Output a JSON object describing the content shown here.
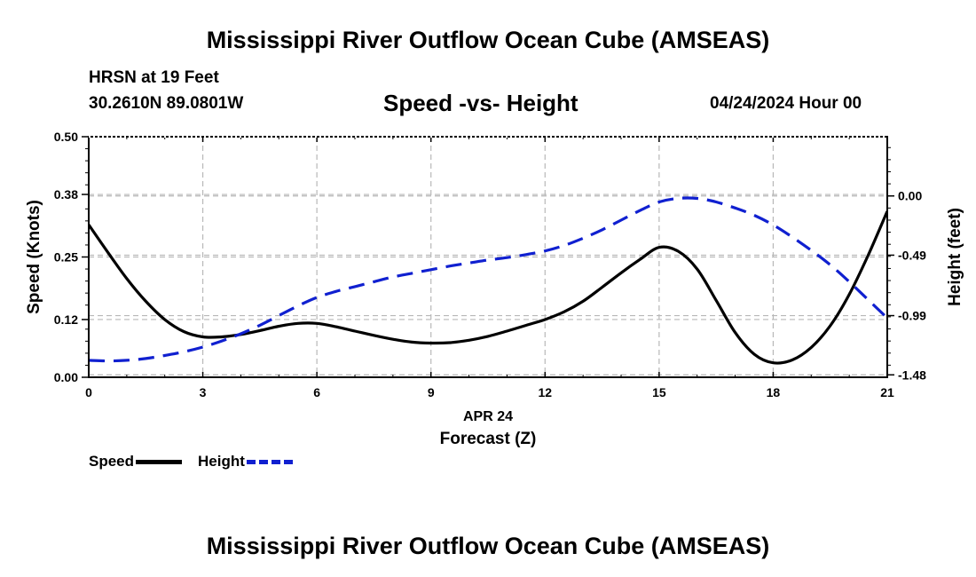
{
  "header": {
    "main_title": "Mississippi River Outflow Ocean Cube (AMSEAS)",
    "station": "HRSN at 19 Feet",
    "coords": "30.2610N  89.0801W",
    "subtitle": "Speed -vs- Height",
    "datetime": "04/24/2024 Hour 00"
  },
  "footer": {
    "title": "Mississippi River Outflow Ocean Cube (AMSEAS)"
  },
  "chart_data": {
    "type": "line",
    "title": "Speed -vs- Height",
    "xlabel": "Forecast (Z)",
    "xlabel_date": "APR 24",
    "x_ticks": [
      "0",
      "3",
      "6",
      "9",
      "12",
      "15",
      "18",
      "21"
    ],
    "xlim": [
      0,
      21
    ],
    "y_left": {
      "label": "Speed (Knots)",
      "ticks": [
        "0.00",
        "0.12",
        "0.25",
        "0.38",
        "0.50"
      ],
      "lim": [
        0,
        0.5
      ]
    },
    "y_right": {
      "label": "Height (feet)",
      "ticks": [
        "-1.48",
        "-0.99",
        "-0.49",
        "0.00"
      ],
      "tick_values": [
        -1.48,
        -0.99,
        -0.49,
        0.0
      ],
      "lim": [
        -1.5,
        0.49
      ]
    },
    "grid": true,
    "series": [
      {
        "name": "Speed",
        "axis": "left",
        "color": "#000000",
        "style": "solid",
        "x": [
          0,
          0.5,
          1,
          1.5,
          2,
          2.5,
          3,
          3.5,
          4,
          4.5,
          5,
          5.5,
          6,
          6.5,
          7,
          7.5,
          8,
          8.5,
          9,
          9.5,
          10,
          10.5,
          11,
          11.5,
          12,
          12.5,
          13,
          13.5,
          14,
          14.5,
          15,
          15.5,
          16,
          16.5,
          17,
          17.5,
          18,
          18.5,
          19,
          19.5,
          20,
          20.5,
          21
        ],
        "values": [
          0.317,
          0.26,
          0.205,
          0.158,
          0.12,
          0.095,
          0.084,
          0.084,
          0.089,
          0.097,
          0.106,
          0.112,
          0.112,
          0.105,
          0.096,
          0.087,
          0.079,
          0.073,
          0.071,
          0.072,
          0.077,
          0.085,
          0.096,
          0.108,
          0.12,
          0.136,
          0.158,
          0.187,
          0.217,
          0.245,
          0.27,
          0.262,
          0.225,
          0.16,
          0.093,
          0.048,
          0.03,
          0.036,
          0.062,
          0.107,
          0.172,
          0.254,
          0.345
        ]
      },
      {
        "name": "Height",
        "axis": "right",
        "color": "#1020d0",
        "style": "dashed",
        "x": [
          0,
          0.5,
          1,
          1.5,
          2,
          2.5,
          3,
          3.5,
          4,
          4.5,
          5,
          5.5,
          6,
          6.5,
          7,
          7.5,
          8,
          8.5,
          9,
          9.5,
          10,
          10.5,
          11,
          11.5,
          12,
          12.5,
          13,
          13.5,
          14,
          14.5,
          15,
          15.5,
          16,
          16.5,
          17,
          17.5,
          18,
          18.5,
          19,
          19.5,
          20,
          20.5,
          21
        ],
        "values": [
          -1.36,
          -1.365,
          -1.36,
          -1.345,
          -1.32,
          -1.29,
          -1.25,
          -1.2,
          -1.14,
          -1.07,
          -0.99,
          -0.91,
          -0.84,
          -0.79,
          -0.75,
          -0.71,
          -0.67,
          -0.64,
          -0.61,
          -0.58,
          -0.555,
          -0.53,
          -0.51,
          -0.485,
          -0.455,
          -0.41,
          -0.35,
          -0.28,
          -0.2,
          -0.12,
          -0.05,
          -0.02,
          -0.02,
          -0.05,
          -0.1,
          -0.16,
          -0.24,
          -0.34,
          -0.45,
          -0.57,
          -0.71,
          -0.86,
          -1.01
        ]
      }
    ]
  },
  "legend": {
    "speed_label": "Speed",
    "height_label": "Height"
  }
}
